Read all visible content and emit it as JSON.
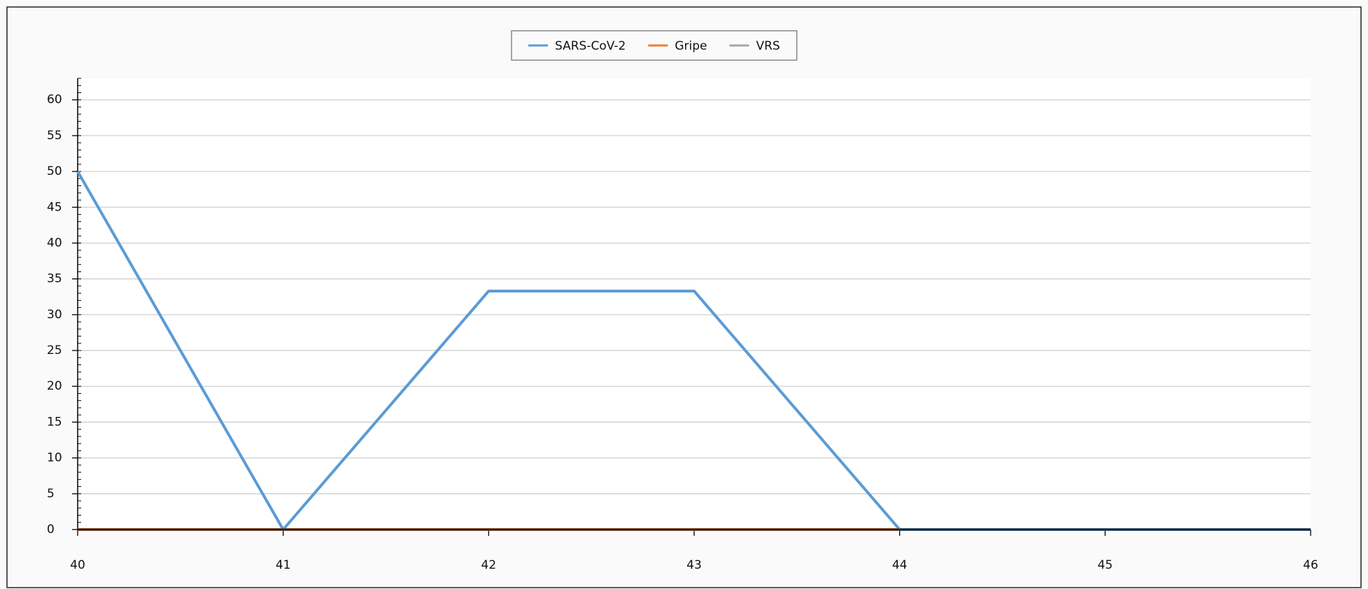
{
  "chart_data": {
    "type": "line",
    "x": [
      40,
      41,
      42,
      43,
      44,
      45,
      46
    ],
    "series": [
      {
        "name": "SARS-CoV-2",
        "color": "#5b9bd5",
        "values": [
          50,
          0,
          33.3,
          33.3,
          0,
          0,
          0
        ]
      },
      {
        "name": "Gripe",
        "color": "#ed7d31",
        "values": [
          0,
          0,
          0,
          0,
          0,
          0,
          0
        ]
      },
      {
        "name": "VRS",
        "color": "#a5a5a5",
        "values": [
          0,
          0,
          0,
          0,
          0,
          0,
          0
        ]
      }
    ],
    "xlim": [
      40,
      46
    ],
    "xticks": [
      40,
      41,
      42,
      43,
      44,
      45,
      46
    ],
    "ylim": [
      0,
      63
    ],
    "yticks": [
      0,
      5,
      10,
      15,
      20,
      25,
      30,
      35,
      40,
      45,
      50,
      55,
      60
    ],
    "grid": true,
    "legend": "top"
  }
}
